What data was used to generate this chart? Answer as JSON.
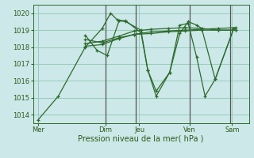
{
  "background_color": "#cce8e8",
  "grid_color": "#99ccbb",
  "line_color": "#2d6a2d",
  "marker_color": "#2d6a2d",
  "xlabel": "Pression niveau de la mer( hPa )",
  "ylim": [
    1013.5,
    1020.5
  ],
  "yticks": [
    1014,
    1015,
    1016,
    1017,
    1018,
    1019,
    1020
  ],
  "xtick_labels": [
    "Mer",
    "Dim",
    "Jeu",
    "Ven",
    "Sam"
  ],
  "xtick_positions": [
    0,
    4,
    6,
    9,
    11.5
  ],
  "xlim": [
    -0.3,
    12.5
  ],
  "series": [
    [
      0.0,
      1013.7,
      1.2,
      1015.1,
      2.8,
      1018.0,
      3.8,
      1019.1,
      4.3,
      1020.0,
      4.7,
      1019.6,
      5.2,
      1019.55,
      6.1,
      1018.85,
      6.5,
      1016.65,
      7.0,
      1015.1,
      7.8,
      1016.5,
      8.4,
      1018.8,
      8.9,
      1019.5,
      9.4,
      1019.3,
      9.7,
      1019.1,
      10.5,
      1016.1,
      11.6,
      1019.1
    ],
    [
      2.8,
      1018.45,
      3.8,
      1018.25,
      4.8,
      1018.55,
      5.7,
      1018.75,
      6.7,
      1018.9,
      7.7,
      1018.95,
      8.7,
      1019.0,
      9.7,
      1019.05,
      10.7,
      1019.1,
      11.7,
      1019.15
    ],
    [
      2.8,
      1018.2,
      3.8,
      1018.35,
      4.8,
      1018.65,
      5.7,
      1018.95,
      6.7,
      1019.05,
      7.7,
      1019.1,
      8.7,
      1019.15,
      9.7,
      1019.1,
      10.7,
      1019.0,
      11.7,
      1019.0
    ],
    [
      2.8,
      1018.05,
      3.8,
      1018.15,
      4.8,
      1018.5,
      5.7,
      1018.75,
      6.7,
      1018.8,
      7.7,
      1018.9,
      8.7,
      1018.95,
      9.7,
      1019.0,
      10.7,
      1019.0,
      11.7,
      1019.0
    ],
    [
      2.8,
      1018.7,
      3.5,
      1017.8,
      4.1,
      1017.5,
      4.8,
      1019.55,
      5.2,
      1019.5,
      6.1,
      1019.0,
      6.5,
      1016.65,
      7.0,
      1015.4,
      7.8,
      1016.5,
      8.4,
      1019.3,
      8.9,
      1019.4,
      9.4,
      1017.4,
      9.9,
      1015.1,
      10.5,
      1016.1,
      11.6,
      1019.1
    ]
  ],
  "vlines": [
    4.0,
    5.8,
    9.0,
    11.4
  ],
  "vline_color": "#555555"
}
